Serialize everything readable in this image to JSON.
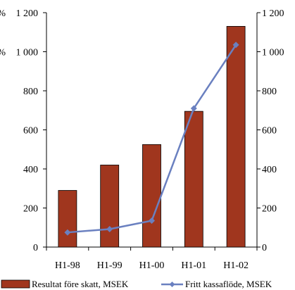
{
  "chart_data": {
    "type": "bar",
    "categories": [
      "H1-98",
      "H1-99",
      "H1-00",
      "H1-01",
      "H1-02"
    ],
    "series": [
      {
        "name": "Resultat före skatt, MSEK",
        "kind": "bar",
        "axis": "left",
        "values": [
          290,
          420,
          525,
          695,
          1130
        ],
        "color": "#a0361e"
      },
      {
        "name": "Fritt kassaflöde, MSEK",
        "kind": "line",
        "axis": "right",
        "values": [
          75,
          92,
          135,
          710,
          1035
        ],
        "color": "#6a80c0"
      }
    ],
    "y_left": {
      "range": [
        0,
        1200
      ],
      "ticks": [
        0,
        200,
        400,
        600,
        800,
        1000,
        1200
      ],
      "tick_labels": [
        "0",
        "200",
        "400",
        "600",
        "800",
        "1 000",
        "1 200"
      ],
      "partial_label_prefix": "%"
    },
    "y_right": {
      "range": [
        0,
        1200
      ],
      "ticks": [
        0,
        200,
        400,
        600,
        800,
        1000,
        1200
      ],
      "tick_labels": [
        "0",
        "200",
        "400",
        "600",
        "800",
        "1 000",
        "1 200"
      ]
    },
    "legend": {
      "placement": "bottom",
      "entries": [
        "Resultat före skatt, MSEK",
        "Fritt kassaflöde, MSEK"
      ]
    },
    "grid": false
  }
}
